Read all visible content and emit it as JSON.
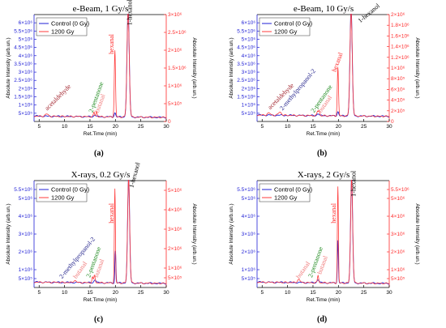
{
  "colors": {
    "control": "#1f1fd6",
    "irradiated": "#ff3b3b",
    "left_axis": "#1f1fd6",
    "right_axis": "#ff2a2a"
  },
  "chart_data": [
    {
      "type": "line",
      "panel": "(a)",
      "title": "e-Beam, 1 Gy/s",
      "xlabel": "Ret.Time (min)",
      "ylabel_left": "Absolute Intensity (arb.un.)",
      "ylabel_right": "Absolute Intensity (arb.un.)",
      "xlim": [
        4,
        30
      ],
      "xticks": [
        5,
        10,
        15,
        20,
        25,
        30
      ],
      "ylim_left": [
        0,
        6500000
      ],
      "yticks_left": [
        {
          "v": 500000,
          "t": "5×10⁵"
        },
        {
          "v": 1000000,
          "t": "1×10⁶"
        },
        {
          "v": 1500000,
          "t": "1.5×10⁶"
        },
        {
          "v": 2000000,
          "t": "2×10⁶"
        },
        {
          "v": 2500000,
          "t": "2.5×10⁶"
        },
        {
          "v": 3000000,
          "t": "3×10⁶"
        },
        {
          "v": 3500000,
          "t": "3.5×10⁶"
        },
        {
          "v": 4000000,
          "t": "4×10⁶"
        },
        {
          "v": 4500000,
          "t": "4.5×10⁶"
        },
        {
          "v": 5000000,
          "t": "5×10⁶"
        },
        {
          "v": 5500000,
          "t": "5.5×10⁶"
        },
        {
          "v": 6000000,
          "t": "6×10⁶"
        }
      ],
      "ylim_right": [
        0,
        3000000
      ],
      "yticks_right": [
        {
          "v": 0,
          "t": "0"
        },
        {
          "v": 500000,
          "t": "5×10⁵"
        },
        {
          "v": 1000000,
          "t": "1×10⁶"
        },
        {
          "v": 1500000,
          "t": "1.5×10⁶"
        },
        {
          "v": 2000000,
          "t": "2×10⁶"
        },
        {
          "v": 2500000,
          "t": "2.5×10⁶"
        },
        {
          "v": 3000000,
          "t": "3×10⁶"
        }
      ],
      "baseline": 0.05,
      "series": [
        {
          "name": "Control (0 Gy)",
          "color": "#1f1fd6",
          "peaks": [
            {
              "x": 22.5,
              "h": 1.0,
              "w": 0.22
            },
            {
              "x": 19.9,
              "h": 0.04,
              "w": 0.15
            },
            {
              "x": 16.0,
              "h": 0.02,
              "w": 0.2
            }
          ]
        },
        {
          "name": "1200 Gy",
          "color": "#ff3b3b",
          "peaks": [
            {
              "x": 22.5,
              "h": 0.99,
              "w": 0.22
            },
            {
              "x": 19.9,
              "h": 0.62,
              "w": 0.12
            },
            {
              "x": 15.8,
              "h": 0.04,
              "w": 0.12
            },
            {
              "x": 16.3,
              "h": 0.05,
              "w": 0.12
            },
            {
              "x": 6.5,
              "h": 0.02,
              "w": 0.3
            }
          ]
        }
      ],
      "annotations": [
        {
          "text": "acetaldehyde",
          "x": 6.6,
          "y": 0.1,
          "rot": -45,
          "color": "#a0202a"
        },
        {
          "text": "2-pentanone",
          "x": 15.5,
          "y": 0.08,
          "rot": -70,
          "color": "#1f8a1f"
        },
        {
          "text": "butanal",
          "x": 16.7,
          "y": 0.08,
          "rot": -70,
          "color": "#f07a7a"
        },
        {
          "text": "hexanal",
          "x": 19.6,
          "y": 0.63,
          "rot": -90,
          "color": "#ff2a2a"
        },
        {
          "text": "1-hexanol",
          "x": 23.2,
          "y": 0.9,
          "rot": -90,
          "color": "#000000"
        }
      ]
    },
    {
      "type": "line",
      "panel": "(b)",
      "title": "e-Beam, 10 Gy/s",
      "xlabel": "Ret.Time (min)",
      "ylabel_left": "Absolute Intensity (arb.un.)",
      "ylabel_right": "Absolute Intensity (arb.un.)",
      "xlim": [
        4,
        30
      ],
      "xticks": [
        5,
        10,
        15,
        20,
        25,
        30
      ],
      "ylim_left": [
        0,
        6500000
      ],
      "yticks_left": [
        {
          "v": 500000,
          "t": "5×10⁵"
        },
        {
          "v": 1000000,
          "t": "1×10⁶"
        },
        {
          "v": 1500000,
          "t": "1.5×10⁶"
        },
        {
          "v": 2000000,
          "t": "2×10⁶"
        },
        {
          "v": 2500000,
          "t": "2.5×10⁶"
        },
        {
          "v": 3000000,
          "t": "3×10⁶"
        },
        {
          "v": 3500000,
          "t": "3.5×10⁶"
        },
        {
          "v": 4000000,
          "t": "4×10⁶"
        },
        {
          "v": 4500000,
          "t": "4.5×10⁶"
        },
        {
          "v": 5000000,
          "t": "5×10⁶"
        },
        {
          "v": 5500000,
          "t": "5.5×10⁶"
        },
        {
          "v": 6000000,
          "t": "6×10⁶"
        }
      ],
      "ylim_right": [
        0,
        2000000
      ],
      "yticks_right": [
        {
          "v": 0,
          "t": "0"
        },
        {
          "v": 200000,
          "t": "2×10⁵"
        },
        {
          "v": 400000,
          "t": "4×10⁵"
        },
        {
          "v": 600000,
          "t": "6×10⁵"
        },
        {
          "v": 800000,
          "t": "8×10⁵"
        },
        {
          "v": 1000000,
          "t": "1×10⁶"
        },
        {
          "v": 1200000,
          "t": "1.2×10⁶"
        },
        {
          "v": 1400000,
          "t": "1.4×10⁶"
        },
        {
          "v": 1600000,
          "t": "1.6×10⁶"
        },
        {
          "v": 1800000,
          "t": "1.8×10⁶"
        },
        {
          "v": 2000000,
          "t": "2×10⁶"
        }
      ],
      "baseline": 0.06,
      "series": [
        {
          "name": "Control (0 Gy)",
          "color": "#1f1fd6",
          "peaks": [
            {
              "x": 22.5,
              "h": 1.0,
              "w": 0.22
            },
            {
              "x": 19.9,
              "h": 0.04,
              "w": 0.15
            },
            {
              "x": 16.0,
              "h": 0.02,
              "w": 0.2
            }
          ]
        },
        {
          "name": "1200 Gy",
          "color": "#ff3b3b",
          "peaks": [
            {
              "x": 22.5,
              "h": 0.99,
              "w": 0.22
            },
            {
              "x": 19.9,
              "h": 0.45,
              "w": 0.12
            },
            {
              "x": 16.2,
              "h": 0.05,
              "w": 0.12
            },
            {
              "x": 15.9,
              "h": 0.04,
              "w": 0.12
            },
            {
              "x": 8.5,
              "h": 0.03,
              "w": 0.3
            },
            {
              "x": 6.3,
              "h": 0.02,
              "w": 0.3
            }
          ]
        }
      ],
      "annotations": [
        {
          "text": "acetaldehyde",
          "x": 6.6,
          "y": 0.11,
          "rot": -45,
          "color": "#a0202a"
        },
        {
          "text": "2-methylpropanol-2",
          "x": 9.0,
          "y": 0.1,
          "rot": -50,
          "color": "#1f1f8a"
        },
        {
          "text": "2-pentanone",
          "x": 15.2,
          "y": 0.08,
          "rot": -55,
          "color": "#1f8a1f"
        },
        {
          "text": "butanal",
          "x": 16.6,
          "y": 0.08,
          "rot": -55,
          "color": "#f07a7a"
        },
        {
          "text": "hexanal",
          "x": 19.5,
          "y": 0.46,
          "rot": -70,
          "color": "#ff2a2a"
        },
        {
          "text": "1-hexanol",
          "x": 24.3,
          "y": 0.92,
          "rot": -40,
          "color": "#000000"
        }
      ]
    },
    {
      "type": "line",
      "panel": "(c)",
      "title": "X-rays, 0.2 Gy/s",
      "xlabel": "Ret.Time (min)",
      "ylabel_left": "Absolute Intensity (arb.un.)",
      "ylabel_right": "Absolute Intensity (arb.un.)",
      "xlim": [
        4,
        30
      ],
      "xticks": [
        5,
        10,
        15,
        20,
        25,
        30
      ],
      "ylim_left": [
        0,
        6000000
      ],
      "yticks_left": [
        {
          "v": 500000,
          "t": "5×10⁵"
        },
        {
          "v": 1000000,
          "t": "1×10⁶"
        },
        {
          "v": 2000000,
          "t": "2×10⁶"
        },
        {
          "v": 3000000,
          "t": "3×10⁶"
        },
        {
          "v": 4000000,
          "t": "4×10⁶"
        },
        {
          "v": 5000000,
          "t": "5×10⁶"
        },
        {
          "v": 5500000,
          "t": "5.5×10⁶"
        }
      ],
      "ylim_right": [
        0,
        5500000
      ],
      "yticks_right": [
        {
          "v": 500000,
          "t": "5×10⁵"
        },
        {
          "v": 1000000,
          "t": "1×10⁶"
        },
        {
          "v": 2000000,
          "t": "2×10⁶"
        },
        {
          "v": 3000000,
          "t": "3×10⁶"
        },
        {
          "v": 4000000,
          "t": "4×10⁶"
        },
        {
          "v": 5000000,
          "t": "5×10⁶"
        }
      ],
      "baseline": 0.05,
      "series": [
        {
          "name": "Control (0 Gy)",
          "color": "#1f1fd6",
          "peaks": [
            {
              "x": 22.6,
              "h": 0.98,
              "w": 0.2
            },
            {
              "x": 20.0,
              "h": 0.3,
              "w": 0.1
            },
            {
              "x": 16.0,
              "h": 0.03,
              "w": 0.2
            }
          ]
        },
        {
          "name": "1200 Gy",
          "color": "#ff3b3b",
          "peaks": [
            {
              "x": 22.6,
              "h": 0.98,
              "w": 0.2
            },
            {
              "x": 19.9,
              "h": 0.88,
              "w": 0.1
            },
            {
              "x": 15.9,
              "h": 0.07,
              "w": 0.12
            },
            {
              "x": 15.5,
              "h": 0.05,
              "w": 0.12
            },
            {
              "x": 12.0,
              "h": 0.02,
              "w": 0.25
            }
          ]
        }
      ],
      "annotations": [
        {
          "text": "2-methylpropanol-2",
          "x": 9.5,
          "y": 0.08,
          "rot": -50,
          "color": "#1f1f8a"
        },
        {
          "text": "butanal",
          "x": 12.3,
          "y": 0.08,
          "rot": -55,
          "color": "#f07a7a"
        },
        {
          "text": "2-pentanone",
          "x": 15.0,
          "y": 0.09,
          "rot": -70,
          "color": "#1f8a1f"
        },
        {
          "text": "butanal",
          "x": 16.5,
          "y": 0.09,
          "rot": -70,
          "color": "#f07a7a"
        },
        {
          "text": "hexanal",
          "x": 19.6,
          "y": 0.6,
          "rot": -90,
          "color": "#ff2a2a"
        },
        {
          "text": "1-hexanol",
          "x": 23.5,
          "y": 0.93,
          "rot": -75,
          "color": "#000000"
        }
      ]
    },
    {
      "type": "line",
      "panel": "(d)",
      "title": "X-rays, 2 Gy/s",
      "xlabel": "Ret.Time (min)",
      "ylabel_left": "Absolute Intensity (arb.un.)",
      "ylabel_right": "Absolute Intensity (arb.un.)",
      "xlim": [
        4,
        30
      ],
      "xticks": [
        5,
        10,
        15,
        20,
        25,
        30
      ],
      "ylim_left": [
        0,
        6000000
      ],
      "yticks_left": [
        {
          "v": 500000,
          "t": "5×10⁵"
        },
        {
          "v": 1000000,
          "t": "1×10⁶"
        },
        {
          "v": 2000000,
          "t": "2×10⁶"
        },
        {
          "v": 3000000,
          "t": "3×10⁶"
        },
        {
          "v": 4000000,
          "t": "4×10⁶"
        },
        {
          "v": 5000000,
          "t": "5×10⁶"
        },
        {
          "v": 5500000,
          "t": "5.5×10⁶"
        }
      ],
      "ylim_right": [
        0,
        6000000
      ],
      "yticks_right": [
        {
          "v": 500000,
          "t": "5×10⁵"
        },
        {
          "v": 1000000,
          "t": "1×10⁶"
        },
        {
          "v": 2000000,
          "t": "2×10⁶"
        },
        {
          "v": 3000000,
          "t": "3×10⁶"
        },
        {
          "v": 4000000,
          "t": "4×10⁶"
        },
        {
          "v": 5000000,
          "t": "5×10⁶"
        },
        {
          "v": 5500000,
          "t": "5.5×10⁶"
        }
      ],
      "baseline": 0.05,
      "series": [
        {
          "name": "Control (0 Gy)",
          "color": "#1f1fd6",
          "peaks": [
            {
              "x": 22.6,
              "h": 0.98,
              "w": 0.2
            },
            {
              "x": 19.9,
              "h": 0.4,
              "w": 0.1
            },
            {
              "x": 16.0,
              "h": 0.03,
              "w": 0.2
            }
          ]
        },
        {
          "name": "1200 Gy",
          "color": "#ff3b3b",
          "peaks": [
            {
              "x": 22.6,
              "h": 0.98,
              "w": 0.2
            },
            {
              "x": 19.9,
              "h": 0.9,
              "w": 0.1
            },
            {
              "x": 16.0,
              "h": 0.07,
              "w": 0.12
            },
            {
              "x": 12.2,
              "h": 0.03,
              "w": 0.25
            }
          ]
        }
      ],
      "annotations": [
        {
          "text": "butanal",
          "x": 12.3,
          "y": 0.08,
          "rot": -55,
          "color": "#f07a7a"
        },
        {
          "text": "2-pentanone",
          "x": 14.8,
          "y": 0.09,
          "rot": -70,
          "color": "#1f8a1f"
        },
        {
          "text": "butanal",
          "x": 16.6,
          "y": 0.12,
          "rot": -70,
          "color": "#f07a7a"
        },
        {
          "text": "hexanal",
          "x": 19.5,
          "y": 0.6,
          "rot": -90,
          "color": "#ff2a2a"
        },
        {
          "text": "1-hexanol",
          "x": 23.4,
          "y": 0.85,
          "rot": -90,
          "color": "#000000"
        }
      ]
    }
  ]
}
